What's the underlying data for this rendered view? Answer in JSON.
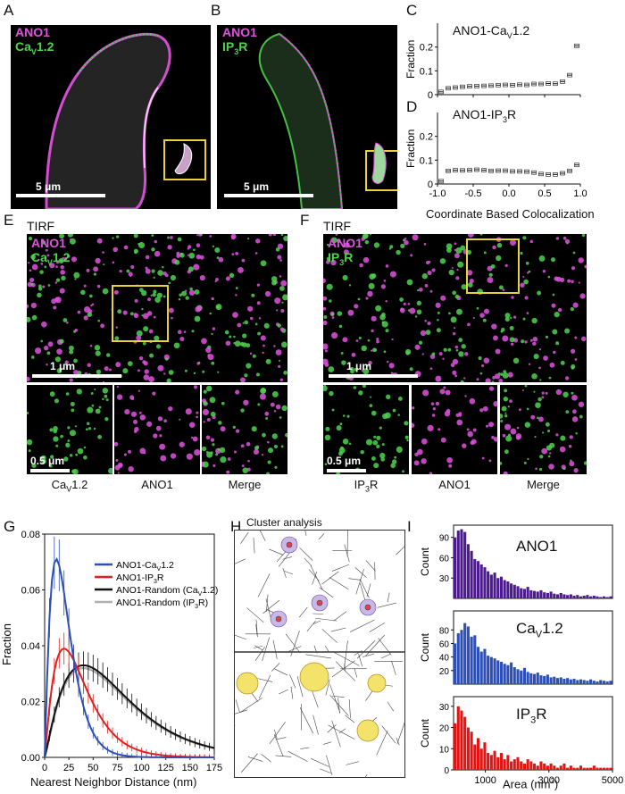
{
  "panels": {
    "A": {
      "letter": "A",
      "ch1": "ANO1",
      "ch2": "CaV1.2",
      "scale": "5 μm"
    },
    "B": {
      "letter": "B",
      "ch1": "ANO1",
      "ch2": "IP3R",
      "scale": "5 μm"
    },
    "C": {
      "letter": "C",
      "title": "ANO1-CaV1.2"
    },
    "D": {
      "letter": "D",
      "title": "ANO1-IP3R"
    },
    "E": {
      "letter": "E",
      "mode": "TIRF",
      "ch1": "ANO1",
      "ch2": "CaV1.2",
      "scale": "1 μm",
      "scale_small": "0.5 μm",
      "captions": [
        "CaV1.2",
        "ANO1",
        "Merge"
      ]
    },
    "F": {
      "letter": "F",
      "mode": "TIRF",
      "ch1": "ANO1",
      "ch2": "IP3R",
      "scale": "1 μm",
      "scale_small": "0.5 μm",
      "captions": [
        "IP3R",
        "ANO1",
        "Merge"
      ]
    },
    "G": {
      "letter": "G"
    },
    "H": {
      "letter": "H",
      "title": "Cluster analysis"
    },
    "I": {
      "letter": "I"
    }
  },
  "colors": {
    "magenta": "#e052e0",
    "green": "#4fd44f",
    "box": "#e8d23a",
    "blue": "#2e4fb5",
    "red": "#e02020",
    "black": "#111111",
    "gray": "#b0b0b0",
    "purple": "#4b1a8c",
    "histblue": "#2e4fb5",
    "histred": "#e01515",
    "cluster": "#f3e36a"
  },
  "chart_data": [
    {
      "id": "C",
      "type": "scatter",
      "title": "ANO1-CaV1.2",
      "ylabel": "Fraction",
      "ylim": [
        0,
        0.3
      ],
      "yticks": [
        "0",
        "0.1",
        "0.2"
      ],
      "x": [
        -0.95,
        -0.85,
        -0.75,
        -0.65,
        -0.55,
        -0.45,
        -0.35,
        -0.25,
        -0.15,
        -0.05,
        0.05,
        0.15,
        0.25,
        0.35,
        0.45,
        0.55,
        0.65,
        0.75,
        0.85,
        0.95
      ],
      "y": [
        0.012,
        0.027,
        0.03,
        0.033,
        0.035,
        0.036,
        0.037,
        0.038,
        0.04,
        0.041,
        0.04,
        0.042,
        0.041,
        0.045,
        0.045,
        0.047,
        0.046,
        0.055,
        0.082,
        0.205
      ]
    },
    {
      "id": "D",
      "type": "scatter",
      "title": "ANO1-IP3R",
      "ylabel": "Fraction",
      "ylim": [
        0,
        0.3
      ],
      "yticks": [
        "0",
        "0.1",
        "0.2"
      ],
      "xlabel": "Coordinate Based Colocalization",
      "xticks": [
        "-1.0",
        "-0.5",
        "0.0",
        "0.5",
        "1.0"
      ],
      "x": [
        -0.95,
        -0.85,
        -0.75,
        -0.65,
        -0.55,
        -0.45,
        -0.35,
        -0.25,
        -0.15,
        -0.05,
        0.05,
        0.15,
        0.25,
        0.35,
        0.45,
        0.55,
        0.65,
        0.75,
        0.85,
        0.95
      ],
      "y": [
        0.012,
        0.055,
        0.058,
        0.057,
        0.058,
        0.06,
        0.058,
        0.055,
        0.056,
        0.056,
        0.053,
        0.053,
        0.052,
        0.048,
        0.042,
        0.04,
        0.04,
        0.045,
        0.055,
        0.08
      ]
    },
    {
      "id": "G",
      "type": "line",
      "ylabel": "Fraction",
      "xlabel": "Nearest Neighbor Distance (nm)",
      "xlim": [
        0,
        175
      ],
      "ylim": [
        0,
        0.08
      ],
      "xticks": [
        "0",
        "25",
        "50",
        "75",
        "100",
        "125",
        "150",
        "175"
      ],
      "yticks": [
        "0.00",
        "0.02",
        "0.04",
        "0.06",
        "0.08"
      ],
      "legend_placement": "top-right",
      "series": [
        {
          "name": "ANO1-CaV1.2",
          "peak_x": 12,
          "peak_y": 0.071
        },
        {
          "name": "ANO1-IP3R",
          "peak_x": 20,
          "peak_y": 0.039
        },
        {
          "name": "ANO1-Random (CaV1.2)",
          "peak_x": 40,
          "peak_y": 0.033
        },
        {
          "name": "ANO1-Random (IP3R)",
          "peak_x": 40,
          "peak_y": 0.032
        }
      ]
    },
    {
      "id": "I",
      "type": "bar",
      "xlabel": "Area (nm2)",
      "xticks": [
        "1000",
        "3000",
        "5000"
      ],
      "xlim": [
        0,
        5000
      ],
      "histograms": [
        {
          "name": "ANO1",
          "ylabel": "Count",
          "ylim": [
            0,
            100
          ],
          "yticks": [
            "30",
            "60",
            "90"
          ],
          "values": [
            90,
            100,
            102,
            98,
            80,
            70,
            58,
            55,
            50,
            46,
            40,
            35,
            38,
            30,
            32,
            27,
            25,
            22,
            20,
            18,
            15,
            14,
            17,
            12,
            11,
            10,
            12,
            9,
            8,
            10,
            7,
            6,
            8,
            6,
            5,
            6,
            4,
            5,
            3,
            4,
            5,
            3,
            4,
            3,
            2,
            3,
            2,
            3
          ]
        },
        {
          "name": "CaV1.2",
          "ylabel": "Count",
          "ylim": [
            0,
            100
          ],
          "yticks": [
            "20",
            "40",
            "60",
            "80"
          ],
          "values": [
            60,
            75,
            80,
            90,
            85,
            70,
            72,
            55,
            48,
            52,
            42,
            40,
            38,
            35,
            33,
            30,
            28,
            32,
            25,
            22,
            20,
            24,
            18,
            16,
            15,
            17,
            13,
            12,
            14,
            10,
            11,
            9,
            10,
            8,
            9,
            7,
            8,
            6,
            7,
            6,
            5,
            7,
            5,
            4,
            6,
            5,
            4,
            5
          ]
        },
        {
          "name": "IP3R",
          "ylabel": "Count",
          "ylim": [
            0,
            32
          ],
          "yticks": [
            "0",
            "10",
            "20",
            "30"
          ],
          "values": [
            22,
            30,
            28,
            25,
            20,
            18,
            12,
            15,
            10,
            13,
            8,
            7,
            9,
            6,
            8,
            5,
            7,
            4,
            5,
            6,
            4,
            3,
            5,
            4,
            3,
            2,
            4,
            3,
            2,
            3,
            2,
            1,
            2,
            3,
            1,
            2,
            1,
            1,
            2,
            1,
            1,
            1,
            2,
            1,
            1,
            1,
            1,
            1
          ]
        }
      ]
    }
  ]
}
